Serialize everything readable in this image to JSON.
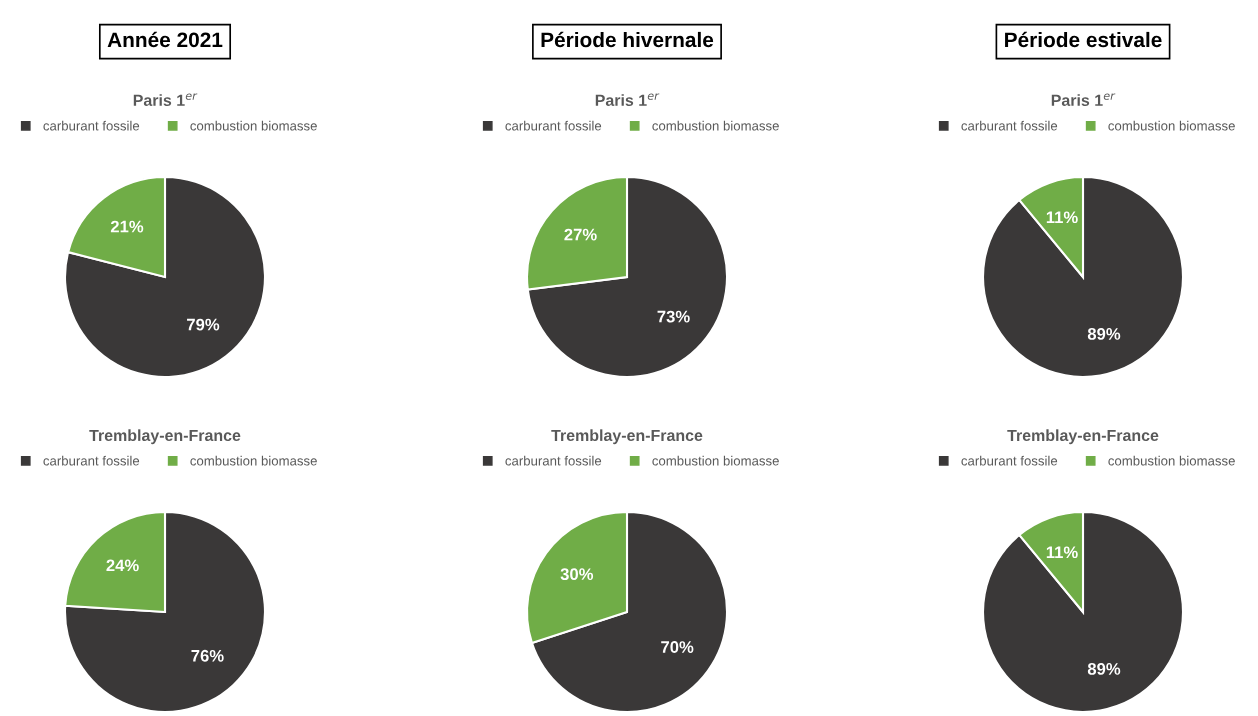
{
  "chart_data": [
    {
      "type": "pie",
      "title": "Paris 1$^{er}$",
      "annotations": [
        "Année 2021"
      ],
      "categories": [
        "carburant fossile",
        "combustion biomasse"
      ],
      "values": [
        79,
        21
      ],
      "value_labels": [
        "79%",
        "21%"
      ],
      "colors": [
        "#3a3838",
        "#70ad47"
      ],
      "legend": "top"
    },
    {
      "type": "pie",
      "title": "Paris 1$^{er}$",
      "annotations": [
        "Période hivernale"
      ],
      "categories": [
        "carburant fossile",
        "combustion biomasse"
      ],
      "values": [
        73,
        27
      ],
      "value_labels": [
        "73%",
        "27%"
      ],
      "colors": [
        "#3a3838",
        "#70ad47"
      ],
      "legend": "top"
    },
    {
      "type": "pie",
      "title": "Paris 1$^{er}$",
      "annotations": [
        "Période estivale"
      ],
      "categories": [
        "carburant fossile",
        "combustion biomasse"
      ],
      "values": [
        89,
        11
      ],
      "value_labels": [
        "89%",
        "11%"
      ],
      "colors": [
        "#3a3838",
        "#70ad47"
      ],
      "legend": "top"
    },
    {
      "type": "pie",
      "title": "Tremblay-en-France",
      "categories": [
        "carburant fossile",
        "combustion biomasse"
      ],
      "values": [
        76,
        24
      ],
      "value_labels": [
        "76%",
        "24%"
      ],
      "colors": [
        "#3a3838",
        "#70ad47"
      ],
      "legend": "top"
    },
    {
      "type": "pie",
      "title": "Tremblay-en-France",
      "categories": [
        "carburant fossile",
        "combustion biomasse"
      ],
      "values": [
        70,
        30
      ],
      "value_labels": [
        "70%",
        "30%"
      ],
      "colors": [
        "#3a3838",
        "#70ad47"
      ],
      "legend": "top"
    },
    {
      "type": "pie",
      "title": "Tremblay-en-France",
      "categories": [
        "carburant fossile",
        "combustion biomasse"
      ],
      "values": [
        89,
        11
      ],
      "value_labels": [
        "89%",
        "11%"
      ],
      "colors": [
        "#3a3838",
        "#70ad47"
      ],
      "legend": "top"
    }
  ]
}
